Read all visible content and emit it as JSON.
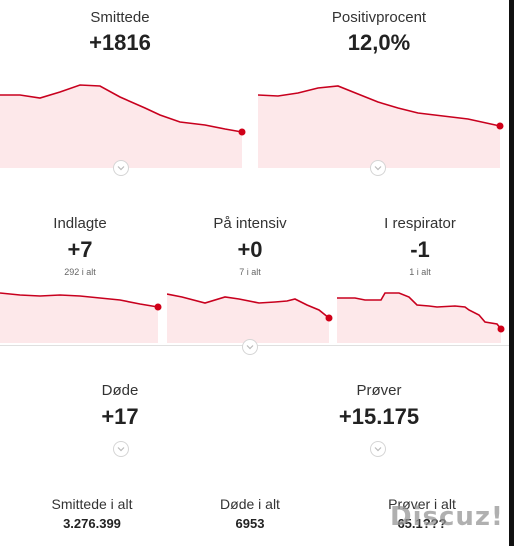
{
  "top_stats": [
    {
      "label": "Smittede",
      "value": "+1816"
    },
    {
      "label": "Positivprocent",
      "value": "12,0%"
    }
  ],
  "mid_stats": [
    {
      "label": "Indlagte",
      "value": "+7",
      "sub": "292 i alt"
    },
    {
      "label": "På intensiv",
      "value": "+0",
      "sub": "7 i alt"
    },
    {
      "label": "I respirator",
      "value": "-1",
      "sub": "1 i alt"
    }
  ],
  "bottom_stats": [
    {
      "label": "Døde",
      "value": "+17"
    },
    {
      "label": "Prøver",
      "value": "+15.175"
    }
  ],
  "totals": [
    {
      "label": "Smittede i alt",
      "value": "3.276.399"
    },
    {
      "label": "Døde i alt",
      "value": "6953"
    },
    {
      "label": "Prøver i alt",
      "value": "65.1???"
    }
  ],
  "watermark": "Discuz!",
  "colors": {
    "line": "#c8001e",
    "fill": "#fde8ea",
    "endpoint": "#d00018"
  },
  "icons": [
    "chevron-down-icon"
  ]
}
